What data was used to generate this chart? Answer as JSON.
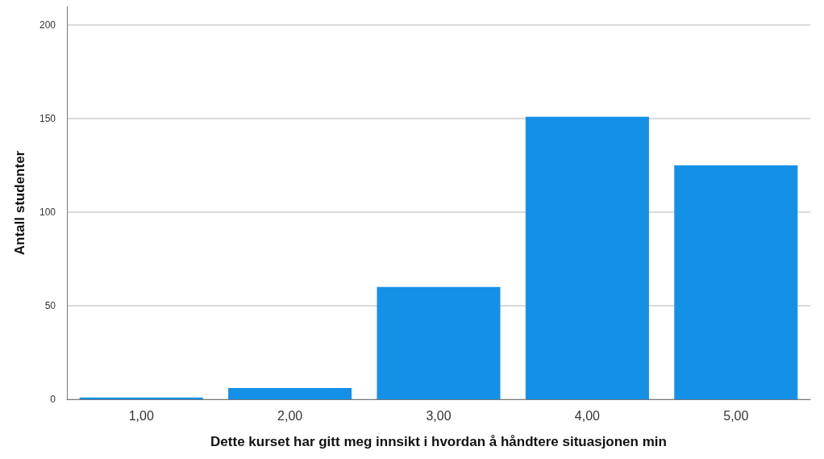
{
  "chart_data": {
    "type": "bar",
    "xlabel": "Dette kurset har gitt meg innsikt i hvordan å håndtere situasjonen min",
    "ylabel": "Antall studenter",
    "categories": [
      "1,00",
      "2,00",
      "3,00",
      "4,00",
      "5,00"
    ],
    "values": [
      1,
      6,
      60,
      151,
      125
    ],
    "color": "#1490e6",
    "ylim": [
      0,
      210
    ],
    "yticks": [
      0,
      50,
      100,
      150,
      200
    ],
    "grid": "y"
  }
}
